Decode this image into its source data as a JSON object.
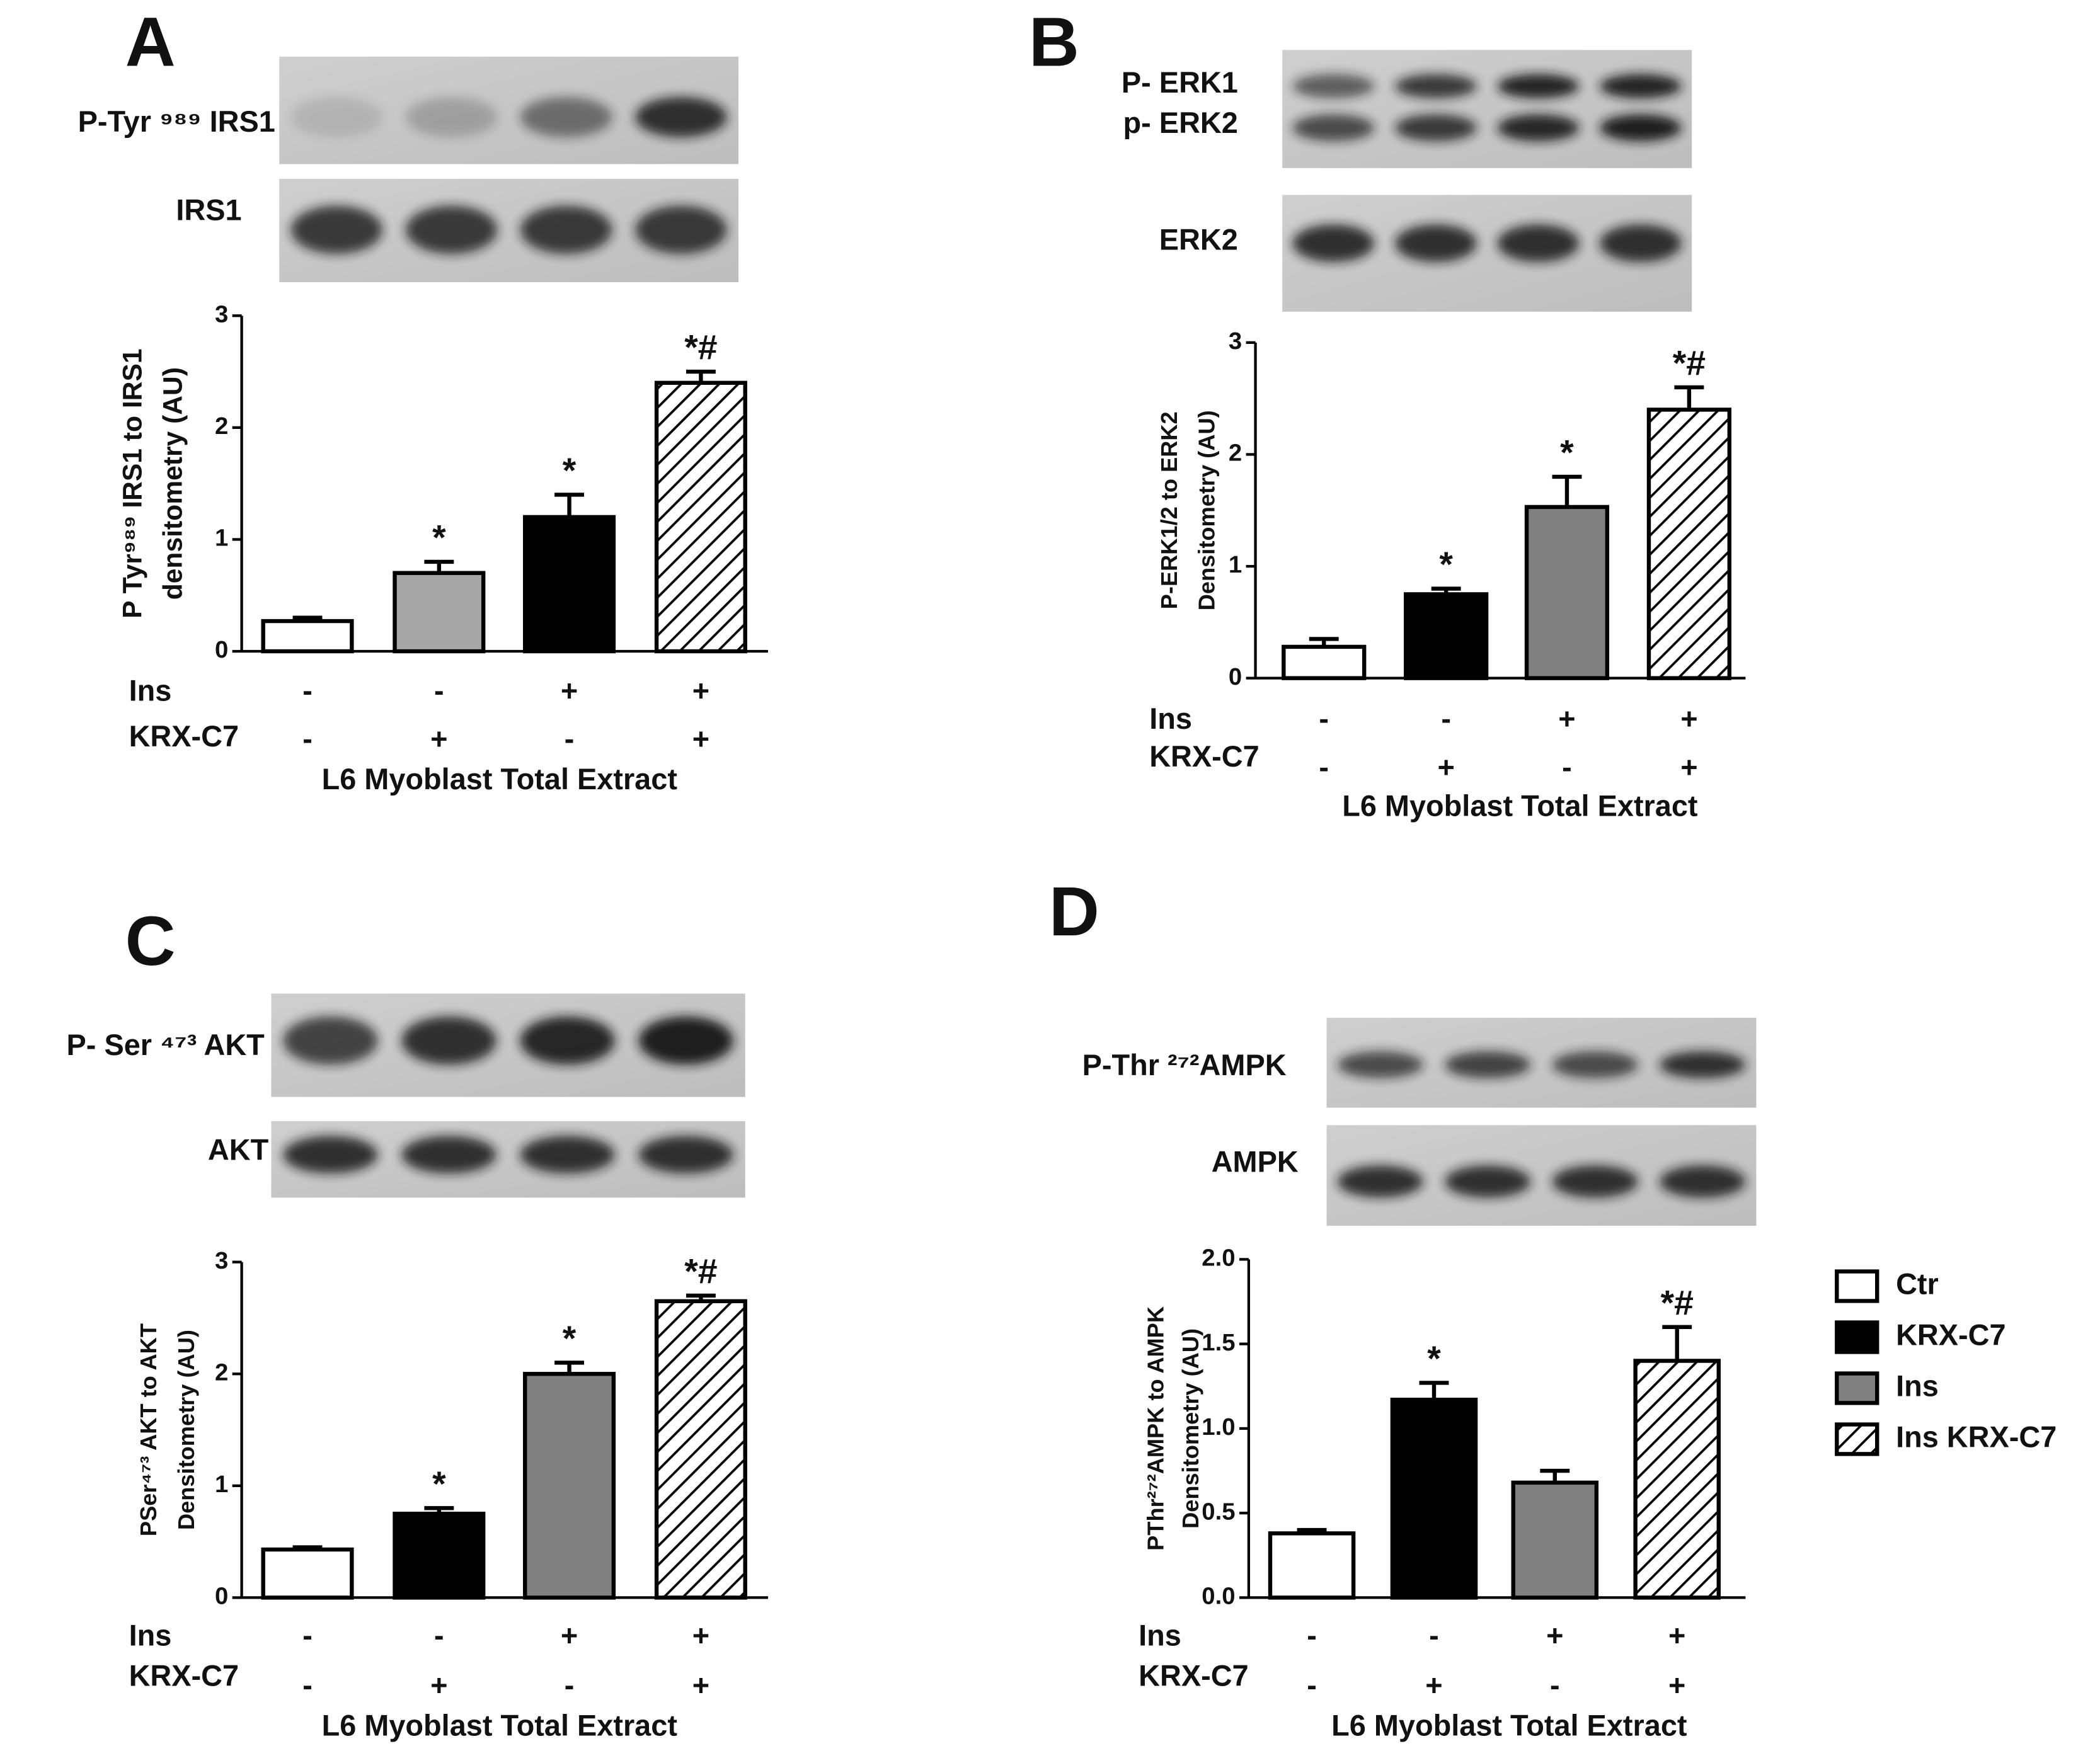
{
  "chart_data": [
    {
      "type": "bar",
      "panel": "A",
      "blot_labels": [
        "P-Tyr ⁹⁸⁹ IRS1",
        "IRS1"
      ],
      "ylabel": [
        "P Tyr⁹⁸⁹ IRS1 to IRS1",
        "densitometry (AU)"
      ],
      "conditions": [
        {
          "name": "Ins",
          "signs": [
            "-",
            "-",
            "+",
            "+"
          ]
        },
        {
          "name": "KRX-C7",
          "signs": [
            "-",
            "+",
            "-",
            "+"
          ]
        }
      ],
      "xlabel": "L6 Myoblast Total Extract",
      "values": [
        0.27,
        0.7,
        1.2,
        2.4
      ],
      "errors": [
        0.03,
        0.1,
        0.2,
        0.1
      ],
      "annotations": [
        null,
        "*",
        "*",
        "*#"
      ],
      "colors": [
        "#ffffff",
        "#a6a6a6",
        "#000000",
        "hatched"
      ],
      "ylim": [
        0,
        3
      ],
      "yticks": [
        0,
        1,
        2,
        3
      ]
    },
    {
      "type": "bar",
      "panel": "B",
      "blot_labels": [
        "P- ERK1",
        "p- ERK2",
        "ERK2"
      ],
      "ylabel": [
        "P-ERK1/2 to ERK2",
        "Densitometry (AU)"
      ],
      "conditions": [
        {
          "name": "Ins",
          "signs": [
            "-",
            "-",
            "+",
            "+"
          ]
        },
        {
          "name": "KRX-C7",
          "signs": [
            "-",
            "+",
            "-",
            "+"
          ]
        }
      ],
      "xlabel": "L6 Myoblast Total Extract",
      "values": [
        0.28,
        0.75,
        1.53,
        2.4
      ],
      "errors": [
        0.07,
        0.05,
        0.27,
        0.2
      ],
      "annotations": [
        null,
        "*",
        "*",
        "*#"
      ],
      "colors": [
        "#ffffff",
        "#000000",
        "#808080",
        "hatched"
      ],
      "ylim": [
        0,
        3
      ],
      "yticks": [
        0,
        1,
        2,
        3
      ]
    },
    {
      "type": "bar",
      "panel": "C",
      "blot_labels": [
        "P- Ser ⁴⁷³ AKT",
        "AKT"
      ],
      "ylabel": [
        "PSer⁴⁷³ AKT to AKT",
        "Densitometry (AU)"
      ],
      "conditions": [
        {
          "name": "Ins",
          "signs": [
            "-",
            "-",
            "+",
            "+"
          ]
        },
        {
          "name": "KRX-C7",
          "signs": [
            "-",
            "+",
            "-",
            "+"
          ]
        }
      ],
      "xlabel": "L6 Myoblast Total Extract",
      "values": [
        0.43,
        0.75,
        2.0,
        2.65
      ],
      "errors": [
        0.02,
        0.05,
        0.1,
        0.05
      ],
      "annotations": [
        null,
        "*",
        "*",
        "*#"
      ],
      "colors": [
        "#ffffff",
        "#000000",
        "#808080",
        "hatched"
      ],
      "ylim": [
        0,
        3
      ],
      "yticks": [
        0,
        1,
        2,
        3
      ]
    },
    {
      "type": "bar",
      "panel": "D",
      "blot_labels": [
        "P-Thr ²⁷²AMPK",
        "AMPK"
      ],
      "ylabel": [
        "PThr²⁷²AMPK to AMPK",
        "Densitometry (AU)"
      ],
      "conditions": [
        {
          "name": "Ins",
          "signs": [
            "-",
            "-",
            "+",
            "+"
          ]
        },
        {
          "name": "KRX-C7",
          "signs": [
            "-",
            "+",
            "-",
            "+"
          ]
        }
      ],
      "xlabel": "L6 Myoblast Total Extract",
      "values": [
        0.38,
        1.17,
        0.68,
        1.4
      ],
      "errors": [
        0.02,
        0.1,
        0.07,
        0.2
      ],
      "annotations": [
        null,
        "*",
        null,
        "*#"
      ],
      "colors": [
        "#ffffff",
        "#000000",
        "#808080",
        "hatched"
      ],
      "ylim": [
        0,
        2
      ],
      "yticks": [
        {
          "value": 0,
          "label": "0.0"
        },
        {
          "value": 0.5,
          "label": "0.5"
        },
        {
          "value": 1,
          "label": "1.0"
        },
        {
          "value": 1.5,
          "label": "1.5"
        },
        {
          "value": 2,
          "label": "2.0"
        }
      ],
      "legend": {
        "entries": [
          "Ctr",
          "KRX-C7",
          "Ins",
          "Ins KRX-C7"
        ],
        "colors": [
          "#ffffff",
          "#000000",
          "#808080",
          "hatched"
        ]
      }
    }
  ]
}
